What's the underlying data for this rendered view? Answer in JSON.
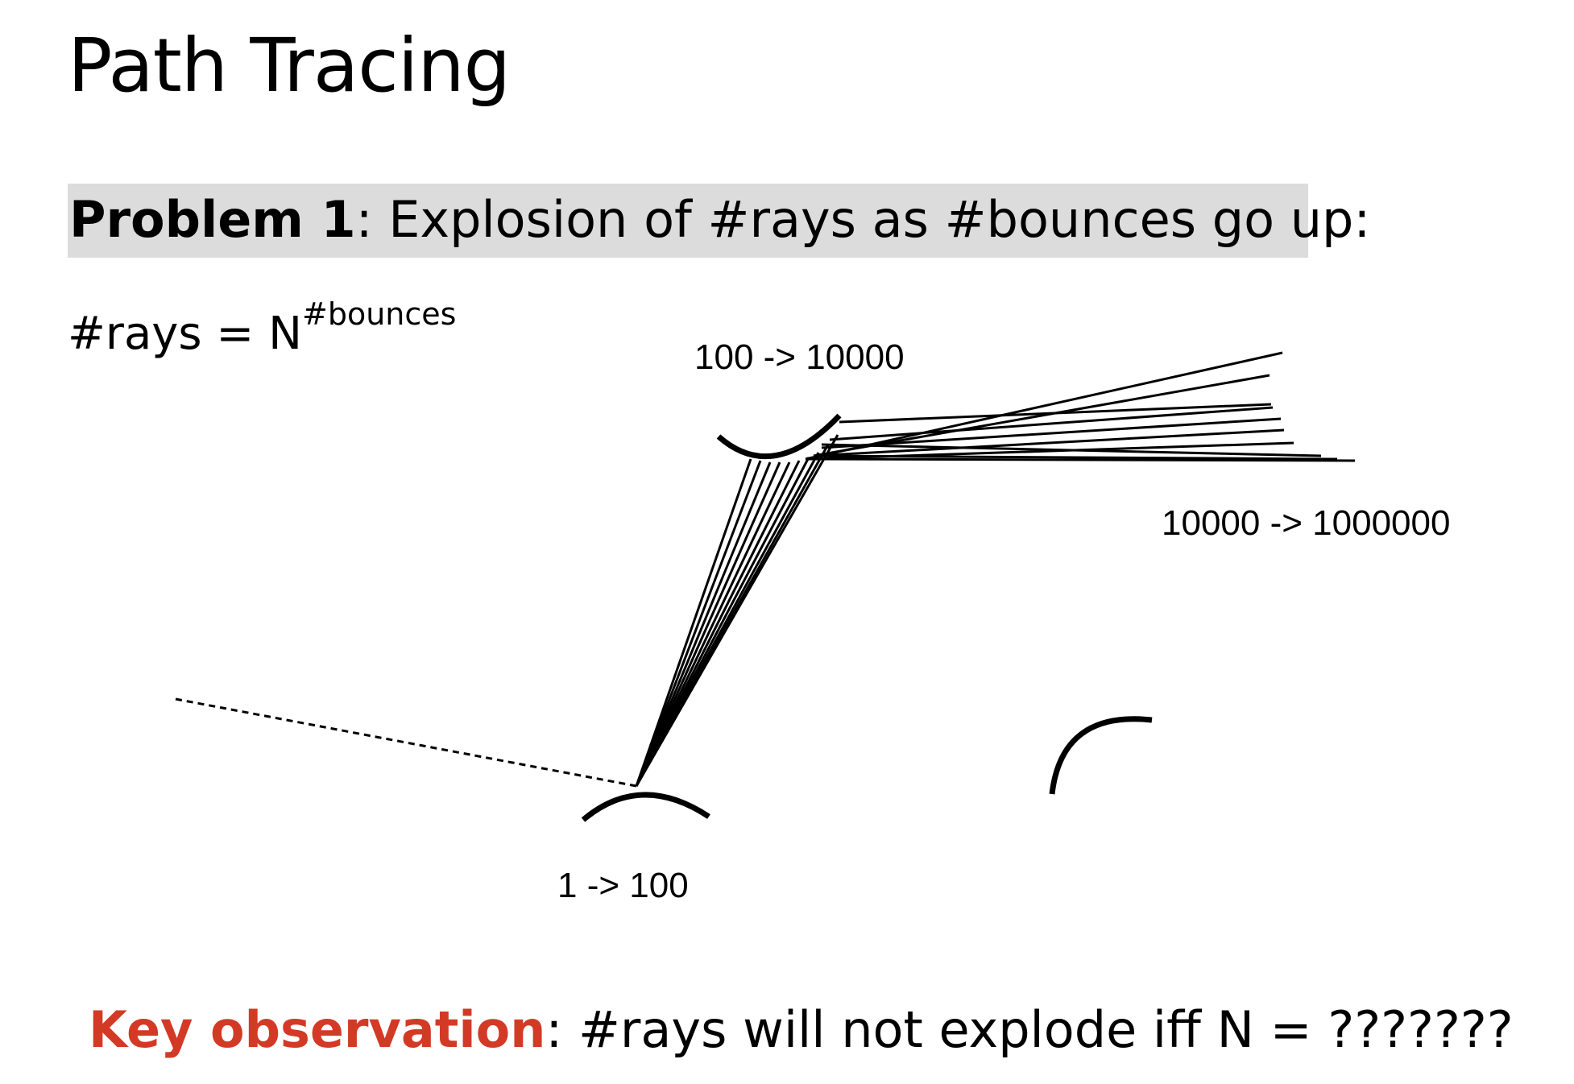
{
  "title": "Path Tracing",
  "problem": {
    "label": "Problem 1",
    "text": ": Explosion of #rays as #bounces go up:",
    "highlight_color": "#dcdcdc"
  },
  "formula": {
    "lhs": "#rays = N",
    "exponent": "#bounces"
  },
  "diagram": {
    "labels": {
      "first_bounce": "1 -> 100",
      "second_bounce": "100 -> 10000",
      "third_bounce": "10000 -> 1000000"
    }
  },
  "key_observation": {
    "label": "Key observation",
    "text": ": #rays will not explode iff N = ???????",
    "color": "#d33a26"
  }
}
